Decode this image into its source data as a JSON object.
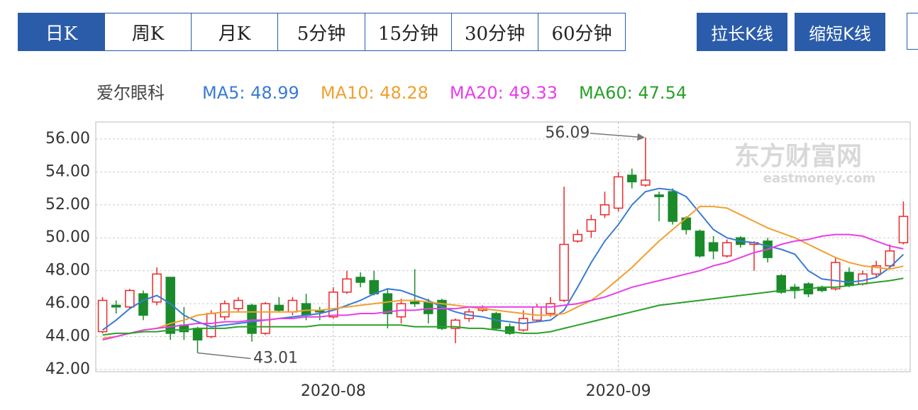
{
  "tabs": [
    "日K",
    "周K",
    "月K",
    "5分钟",
    "15分钟",
    "30分钟",
    "60分钟"
  ],
  "buttons": [
    "拉长K线",
    "缩短K线"
  ],
  "watermark": [
    "东方财富网",
    "eastmoney.com"
  ],
  "chart_data": {
    "type": "candlestick",
    "stock_name": "爱尔眼科",
    "up_color": "#e8292b",
    "down_color": "#1a8a2a",
    "grid": true,
    "ylim": [
      41.87,
      57.03
    ],
    "yticks": [
      {
        "value": 42,
        "label": "42.00"
      },
      {
        "value": 44,
        "label": "44.00"
      },
      {
        "value": 46,
        "label": "46.00"
      },
      {
        "value": 48,
        "label": "48.00"
      },
      {
        "value": 50,
        "label": "50.00"
      },
      {
        "value": 52,
        "label": "52.00"
      },
      {
        "value": 54,
        "label": "54.00"
      },
      {
        "value": 56,
        "label": "56.00"
      }
    ],
    "categories": [
      null,
      null,
      null,
      null,
      null,
      null,
      null,
      null,
      null,
      null,
      null,
      null,
      null,
      null,
      null,
      null,
      null,
      "2020-08",
      null,
      null,
      null,
      null,
      null,
      null,
      null,
      null,
      null,
      null,
      null,
      null,
      null,
      null,
      null,
      null,
      null,
      null,
      null,
      null,
      "2020-09",
      null,
      null,
      null,
      null,
      null,
      null,
      null,
      null,
      null,
      null,
      null,
      null,
      null,
      null,
      null,
      null,
      null,
      null,
      null,
      null,
      null
    ],
    "open": [
      44.3,
      45.9,
      45.8,
      46.6,
      46.1,
      47.6,
      44.7,
      44.5,
      44.0,
      45.2,
      45.7,
      45.9,
      44.2,
      45.9,
      45.5,
      46.0,
      45.6,
      45.2,
      46.7,
      47.6,
      47.4,
      46.6,
      45.2,
      46.1,
      46.1,
      46.2,
      44.5,
      45.1,
      45.6,
      45.4,
      44.6,
      44.4,
      45.0,
      45.4,
      46.2,
      49.8,
      50.4,
      51.4,
      51.8,
      53.8,
      53.2,
      52.6,
      52.8,
      51.2,
      50.4,
      49.7,
      48.9,
      50.0,
      49.6,
      49.8,
      47.7,
      47.0,
      47.2,
      47.0,
      46.9,
      47.9,
      47.2,
      47.8,
      48.3,
      49.7
    ],
    "high": [
      46.4,
      46.2,
      46.9,
      46.8,
      48.2,
      47.6,
      45.8,
      44.6,
      45.6,
      46.2,
      46.4,
      46.0,
      46.1,
      46.4,
      46.4,
      46.6,
      45.8,
      47.0,
      48.0,
      47.9,
      48.0,
      46.9,
      46.3,
      48.1,
      46.3,
      46.3,
      45.1,
      45.7,
      45.9,
      45.5,
      44.8,
      45.6,
      46.0,
      46.4,
      53.1,
      50.5,
      51.4,
      52.8,
      54.0,
      54.2,
      56.09,
      52.8,
      53.0,
      51.3,
      50.5,
      50.1,
      49.9,
      50.1,
      49.8,
      50.0,
      47.8,
      47.2,
      47.3,
      47.1,
      48.8,
      48.2,
      48.0,
      48.6,
      49.6,
      52.2
    ],
    "low": [
      44.2,
      45.4,
      45.7,
      45.0,
      45.9,
      43.8,
      43.8,
      43.01,
      43.9,
      45.0,
      45.5,
      43.7,
      44.1,
      45.5,
      45.3,
      45.0,
      45.0,
      45.1,
      46.6,
      47.0,
      46.5,
      44.5,
      44.8,
      45.8,
      44.8,
      44.4,
      43.6,
      44.9,
      45.5,
      44.4,
      44.1,
      44.3,
      44.9,
      45.2,
      46.1,
      49.7,
      50.0,
      51.2,
      51.6,
      53.0,
      53.1,
      51.0,
      50.8,
      50.2,
      48.8,
      48.7,
      48.8,
      49.4,
      48.0,
      48.5,
      46.6,
      46.3,
      46.4,
      46.7,
      46.8,
      47.0,
      47.1,
      47.6,
      48.2,
      49.6
    ],
    "close": [
      46.2,
      45.8,
      46.8,
      45.3,
      47.8,
      44.2,
      44.3,
      43.8,
      45.4,
      46.0,
      46.2,
      44.2,
      46.0,
      45.6,
      46.2,
      45.3,
      45.5,
      46.7,
      47.5,
      47.3,
      46.6,
      45.4,
      46.0,
      46.0,
      45.4,
      44.5,
      45.0,
      45.5,
      45.7,
      44.5,
      44.2,
      45.1,
      45.8,
      46.0,
      49.6,
      50.2,
      51.1,
      52.0,
      53.7,
      53.4,
      53.5,
      52.5,
      51.0,
      50.5,
      48.9,
      49.2,
      49.7,
      49.6,
      49.7,
      48.8,
      46.7,
      46.8,
      46.6,
      46.8,
      48.5,
      47.1,
      47.8,
      48.3,
      49.2,
      51.3
    ],
    "annotations": [
      {
        "index": 40,
        "field": "high"
      },
      {
        "index": 7,
        "field": "low"
      }
    ],
    "series": [
      {
        "name": "MA5: 48.99",
        "color": "#3a7bd5",
        "values": [
          44.4,
          45.0,
          45.7,
          46.2,
          46.5,
          46.0,
          45.3,
          44.9,
          44.6,
          44.7,
          44.8,
          44.9,
          45.0,
          45.1,
          45.2,
          45.3,
          45.4,
          45.6,
          45.9,
          46.2,
          46.6,
          46.9,
          46.8,
          46.5,
          46.2,
          45.8,
          45.5,
          45.3,
          45.2,
          45.0,
          44.9,
          44.8,
          44.9,
          45.0,
          45.6,
          47.0,
          48.5,
          49.8,
          50.8,
          52.0,
          52.8,
          53.0,
          52.9,
          52.5,
          51.5,
          50.5,
          50.0,
          49.8,
          49.7,
          49.5,
          49.3,
          49.0,
          48.0,
          47.5,
          47.4,
          47.3,
          47.4,
          47.6,
          48.2,
          48.99
        ]
      },
      {
        "name": "MA10: 48.28",
        "color": "#f0a030",
        "values": [
          43.9,
          44.0,
          44.2,
          44.4,
          44.5,
          44.8,
          45.0,
          45.3,
          45.4,
          45.5,
          45.5,
          45.5,
          45.5,
          45.5,
          45.5,
          45.6,
          45.6,
          45.7,
          45.8,
          45.9,
          46.0,
          46.1,
          46.2,
          46.2,
          46.1,
          46.0,
          45.9,
          45.8,
          45.7,
          45.6,
          45.5,
          45.4,
          45.3,
          45.3,
          45.4,
          45.8,
          46.2,
          46.8,
          47.5,
          48.2,
          49.0,
          49.8,
          50.5,
          51.2,
          51.9,
          51.9,
          51.8,
          51.4,
          51.0,
          50.6,
          50.3,
          50.0,
          49.6,
          49.2,
          48.8,
          48.5,
          48.3,
          48.2,
          48.1,
          48.28
        ]
      },
      {
        "name": "MA20: 49.33",
        "color": "#e83ee8",
        "values": [
          43.8,
          44.0,
          44.2,
          44.4,
          44.5,
          44.6,
          44.7,
          44.8,
          44.8,
          44.9,
          44.9,
          45.0,
          45.0,
          45.1,
          45.1,
          45.2,
          45.2,
          45.3,
          45.3,
          45.4,
          45.4,
          45.5,
          45.6,
          45.6,
          45.7,
          45.7,
          45.7,
          45.8,
          45.8,
          45.8,
          45.8,
          45.8,
          45.8,
          45.8,
          45.9,
          46.0,
          46.2,
          46.4,
          46.7,
          47.0,
          47.2,
          47.4,
          47.6,
          47.8,
          48.0,
          48.3,
          48.5,
          48.8,
          49.1,
          49.3,
          49.6,
          49.8,
          49.9,
          50.1,
          50.2,
          50.2,
          50.1,
          49.8,
          49.5,
          49.33
        ]
      },
      {
        "name": "MA60: 47.54",
        "color": "#2aa02a",
        "values": [
          44.1,
          44.2,
          44.2,
          44.3,
          44.3,
          44.4,
          44.4,
          44.5,
          44.5,
          44.5,
          44.6,
          44.6,
          44.6,
          44.6,
          44.6,
          44.6,
          44.7,
          44.7,
          44.7,
          44.7,
          44.7,
          44.7,
          44.7,
          44.6,
          44.6,
          44.6,
          44.6,
          44.5,
          44.5,
          44.4,
          44.3,
          44.2,
          44.2,
          44.3,
          44.5,
          44.7,
          44.9,
          45.1,
          45.3,
          45.5,
          45.7,
          45.9,
          46.0,
          46.1,
          46.2,
          46.3,
          46.4,
          46.5,
          46.6,
          46.7,
          46.8,
          46.8,
          46.9,
          47.0,
          47.0,
          47.1,
          47.2,
          47.3,
          47.4,
          47.54
        ]
      }
    ]
  }
}
